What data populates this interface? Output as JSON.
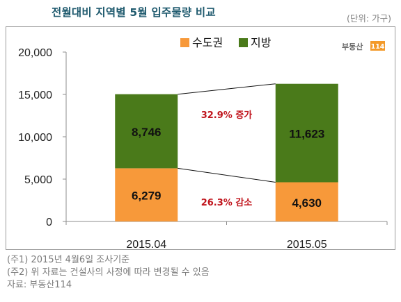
{
  "header": {
    "title": "전월대비 지역별 5월 입주물량 비교",
    "unit": "(단위: 가구)"
  },
  "logo": {
    "text": "부동산114"
  },
  "annotations": {
    "capital_change": "26.3% 감소",
    "region_change": "32.9% 증가"
  },
  "notes": [
    "(주1) 2015년 4월6일 조사기준",
    "(주2) 위 자료는 건설사의 사정에 따라 변경될 수 있음",
    "자료: 부동산114"
  ],
  "colors": {
    "capital": "#f7993a",
    "region": "#4a7a1a",
    "title": "#1f5a6e",
    "annotation": "#c0141c"
  },
  "chart_data": {
    "type": "bar",
    "stacked": true,
    "categories": [
      "2015.04",
      "2015.05"
    ],
    "series": [
      {
        "name": "수도권",
        "values": [
          6279,
          4630
        ],
        "labels": [
          "6,279",
          "4,630"
        ]
      },
      {
        "name": "지방",
        "values": [
          8746,
          11623
        ],
        "labels": [
          "8,746",
          "11,623"
        ]
      }
    ],
    "ylim": [
      0,
      20000
    ],
    "yticks": [
      0,
      5000,
      10000,
      15000,
      20000
    ],
    "ytick_labels": [
      "0",
      "5,000",
      "10,000",
      "15,000",
      "20,000"
    ],
    "legend_position": "top-center",
    "grid": false
  }
}
